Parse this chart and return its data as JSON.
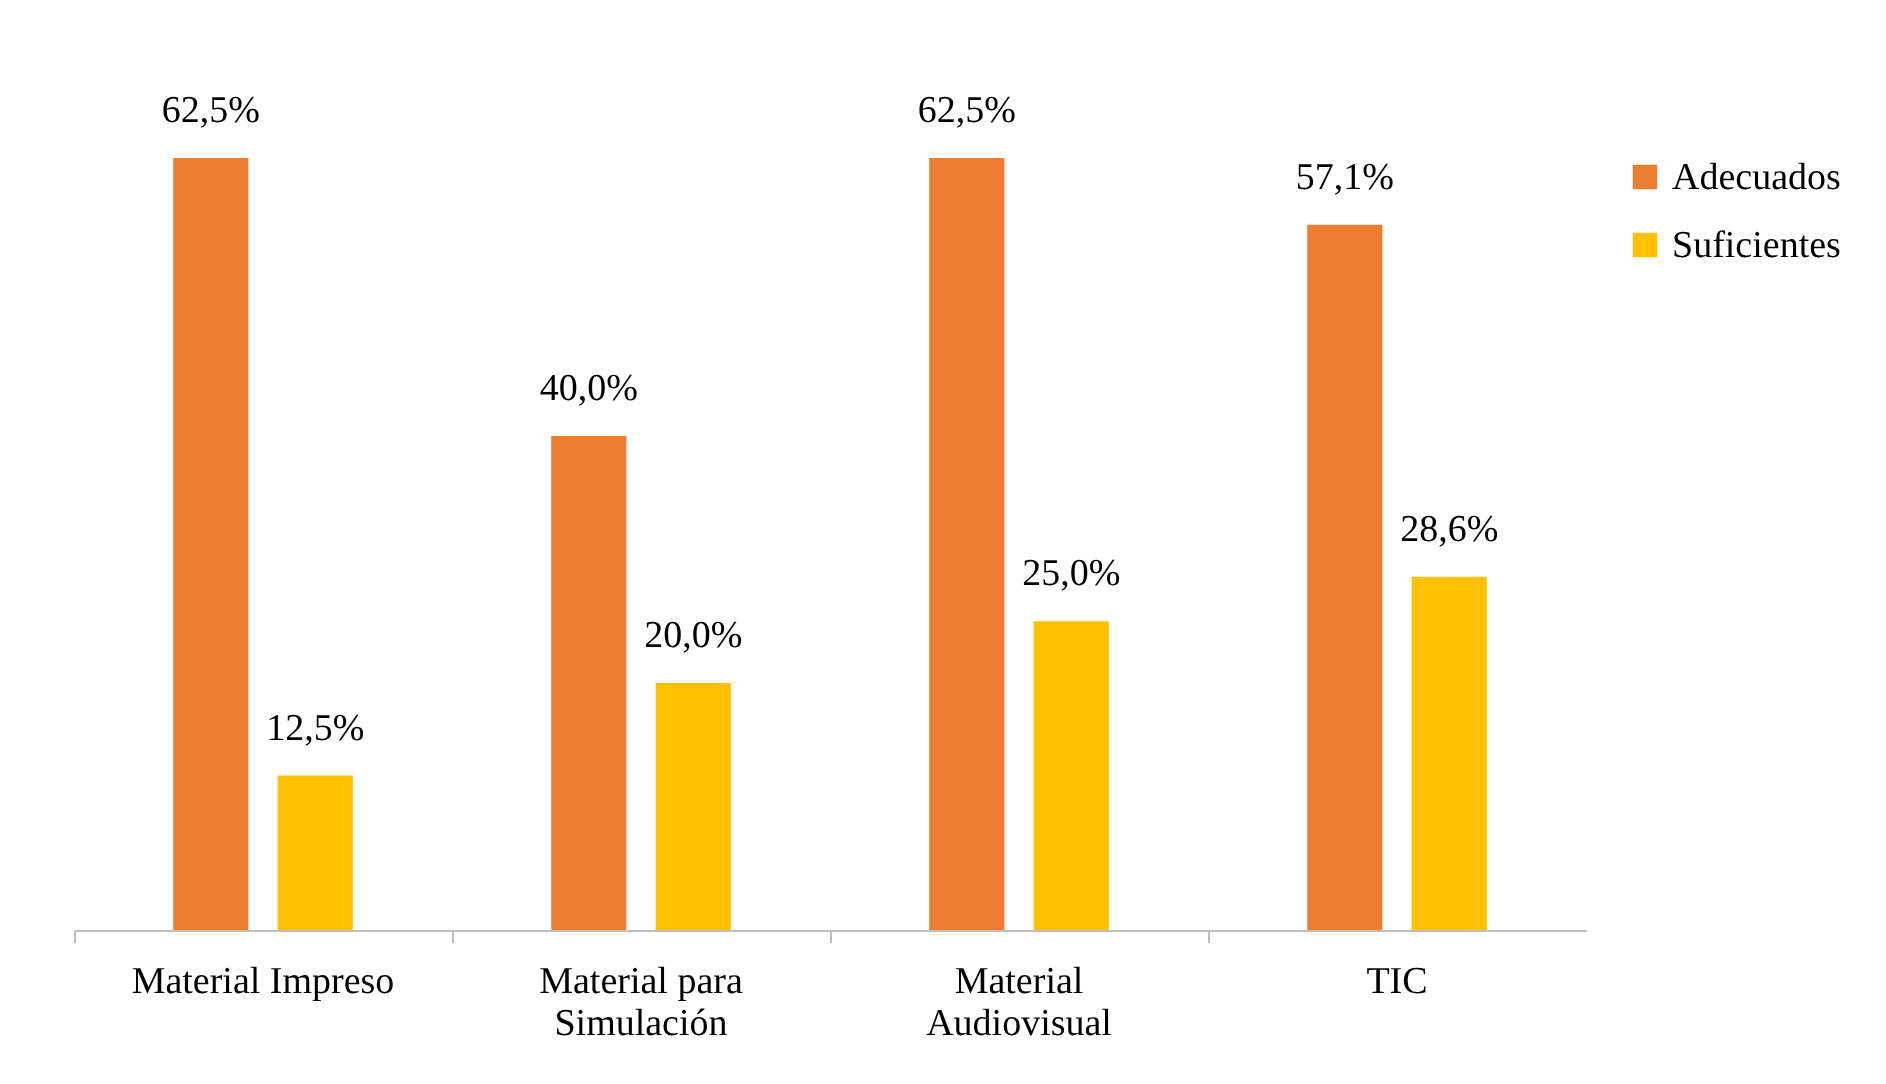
{
  "chart_data": {
    "type": "bar",
    "categories": [
      "Material Impreso",
      "Material para Simulación",
      "Material Audiovisual",
      "TIC"
    ],
    "series": [
      {
        "name": "Adecuados",
        "color": "#ed7d31",
        "values": [
          62.5,
          40.0,
          62.5,
          57.1
        ],
        "value_labels": [
          "62,5%",
          "40,0%",
          "62,5%",
          "57,1%"
        ]
      },
      {
        "name": "Suficientes",
        "color": "#ffc000",
        "values": [
          12.5,
          20.0,
          25.0,
          28.6
        ],
        "value_labels": [
          "12,5%",
          "20,0%",
          "25,0%",
          "28,6%"
        ]
      }
    ],
    "legend": "right"
  }
}
